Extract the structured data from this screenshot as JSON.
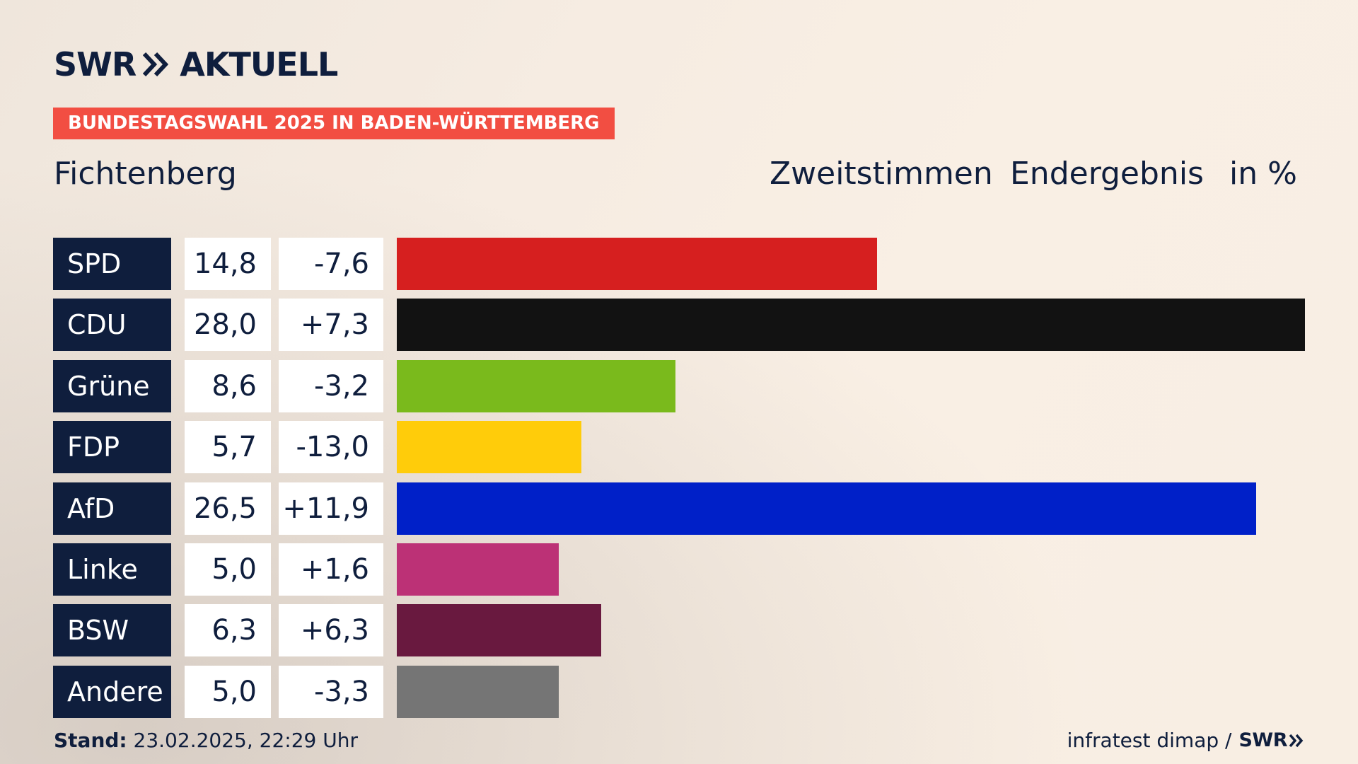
{
  "brand": {
    "logo_left": "SWR",
    "logo_right": "AKTUELL",
    "logo_icon": "double-chevron-icon"
  },
  "banner": "BUNDESTAGSWAHL 2025 IN BADEN-WÜRTTEMBERG",
  "place": "Fichtenberg",
  "header": {
    "vote_type": "Zweitstimmen",
    "result": "Endergebnis",
    "unit": "in %"
  },
  "chart_data": {
    "type": "bar",
    "orientation": "horizontal",
    "categories": [
      "SPD",
      "CDU",
      "Grüne",
      "FDP",
      "AfD",
      "Linke",
      "BSW",
      "Andere"
    ],
    "values": [
      14.8,
      28.0,
      8.6,
      5.7,
      26.5,
      5.0,
      6.3,
      5.0
    ],
    "value_labels": [
      "14,8",
      "28,0",
      "8,6",
      "5,7",
      "26,5",
      "5,0",
      "6,3",
      "5,0"
    ],
    "diff_labels": [
      "-7,6",
      "+7,3",
      "-3,2",
      "-13,0",
      "+11,9",
      "+1,6",
      "+6,3",
      "-3,3"
    ],
    "diffs": [
      -7.6,
      7.3,
      -3.2,
      -13.0,
      11.9,
      1.6,
      6.3,
      -3.3
    ],
    "colors": [
      "#d61f1f",
      "#121212",
      "#7aba1c",
      "#ffcc0a",
      "#0020c8",
      "#bc3176",
      "#69193f",
      "#757575"
    ],
    "xlim": [
      0,
      28.0
    ],
    "legend": "none",
    "grid": false
  },
  "footer": {
    "stand_label": "Stand:",
    "stand_value": "23.02.2025, 22:29 Uhr",
    "source": "infratest dimap /",
    "source_logo": "SWR"
  }
}
